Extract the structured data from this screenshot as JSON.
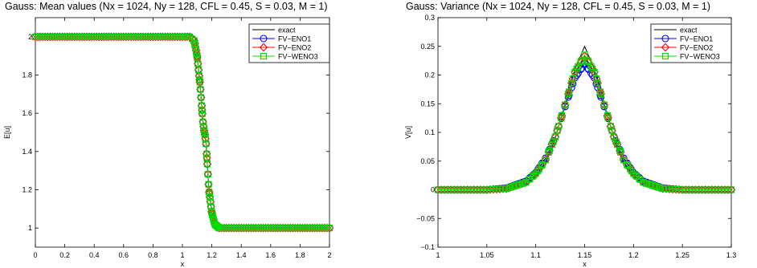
{
  "chart_data": [
    {
      "type": "line",
      "title": "Gauss: Mean values (Nx = 1024, Ny = 128, CFL = 0.45, S = 0.03, M = 1)",
      "xlabel": "x",
      "ylabel": "E[u]",
      "xlim": [
        0,
        2
      ],
      "ylim": [
        0.9,
        2.1
      ],
      "x_ticks": [
        0,
        0.2,
        0.4,
        0.6,
        0.8,
        1,
        1.2,
        1.4,
        1.6,
        1.8,
        2
      ],
      "x_tick_labels": [
        "0",
        "0.2",
        "0.4",
        "0.6",
        "0.8",
        "1",
        "1.2",
        "1.4",
        "1.6",
        "1.8",
        "2"
      ],
      "y_ticks": [
        1,
        1.2,
        1.4,
        1.6,
        1.8,
        2
      ],
      "y_tick_labels": [
        "1",
        "1.2",
        "1.4",
        "1.6",
        "1.8",
        "2"
      ],
      "grid": false,
      "legend_position": "top-right",
      "series": [
        {
          "name": "exact",
          "color": "#000000",
          "marker": "none",
          "x": [
            0,
            1.05,
            1.08,
            1.1,
            1.12,
            1.14,
            1.15,
            1.16,
            1.18,
            1.2,
            1.22,
            1.25,
            2
          ],
          "y": [
            2,
            2,
            1.98,
            1.9,
            1.75,
            1.55,
            1.5,
            1.45,
            1.2,
            1.08,
            1.02,
            1,
            1
          ]
        },
        {
          "name": "FV−ENO1",
          "color": "#0000ff",
          "marker": "circle",
          "x": [
            0,
            1.05,
            1.08,
            1.1,
            1.12,
            1.14,
            1.15,
            1.16,
            1.18,
            1.2,
            1.22,
            1.25,
            2
          ],
          "y": [
            2,
            2,
            1.98,
            1.9,
            1.75,
            1.55,
            1.5,
            1.45,
            1.2,
            1.08,
            1.02,
            1,
            1
          ]
        },
        {
          "name": "FV−ENO2",
          "color": "#ff0000",
          "marker": "diamond",
          "x": [
            0,
            1.05,
            1.08,
            1.1,
            1.12,
            1.14,
            1.15,
            1.16,
            1.18,
            1.2,
            1.22,
            1.25,
            2
          ],
          "y": [
            2,
            2,
            1.98,
            1.9,
            1.75,
            1.55,
            1.5,
            1.45,
            1.2,
            1.08,
            1.02,
            1,
            1
          ]
        },
        {
          "name": "FV−WENO3",
          "color": "#00dd00",
          "marker": "square",
          "x": [
            0,
            1.05,
            1.08,
            1.1,
            1.12,
            1.14,
            1.15,
            1.16,
            1.18,
            1.2,
            1.22,
            1.25,
            2
          ],
          "y": [
            2,
            2,
            1.98,
            1.9,
            1.75,
            1.55,
            1.5,
            1.45,
            1.2,
            1.08,
            1.02,
            1,
            1
          ]
        }
      ]
    },
    {
      "type": "line",
      "title": "Gauss: Variance (Nx = 1024, Ny = 128, CFL = 0.45, S = 0.03, M = 1)",
      "xlabel": "x",
      "ylabel": "V[u]",
      "xlim": [
        1,
        1.3
      ],
      "ylim": [
        -0.1,
        0.3
      ],
      "x_ticks": [
        1,
        1.05,
        1.1,
        1.15,
        1.2,
        1.25,
        1.3
      ],
      "x_tick_labels": [
        "1",
        "1.05",
        "1.1",
        "1.15",
        "1.2",
        "1.25",
        "1.3"
      ],
      "y_ticks": [
        -0.1,
        -0.05,
        0,
        0.05,
        0.1,
        0.15,
        0.2,
        0.25,
        0.3
      ],
      "y_tick_labels": [
        "−0.1",
        "−0.05",
        "0",
        "0.05",
        "0.1",
        "0.15",
        "0.2",
        "0.25",
        "0.3"
      ],
      "grid": false,
      "legend_position": "top-right",
      "series": [
        {
          "name": "exact",
          "color": "#000000",
          "marker": "none",
          "x": [
            1,
            1.05,
            1.07,
            1.09,
            1.1,
            1.11,
            1.12,
            1.13,
            1.14,
            1.15,
            1.16,
            1.17,
            1.18,
            1.19,
            1.2,
            1.21,
            1.23,
            1.25,
            1.3
          ],
          "y": [
            0,
            0,
            0.001,
            0.011,
            0.025,
            0.048,
            0.09,
            0.15,
            0.21,
            0.25,
            0.21,
            0.15,
            0.09,
            0.048,
            0.025,
            0.011,
            0.001,
            0,
            0
          ]
        },
        {
          "name": "FV−ENO1",
          "color": "#0000ff",
          "marker": "circle",
          "x": [
            1,
            1.05,
            1.07,
            1.09,
            1.1,
            1.11,
            1.12,
            1.13,
            1.14,
            1.15,
            1.16,
            1.17,
            1.18,
            1.19,
            1.2,
            1.21,
            1.23,
            1.25,
            1.3
          ],
          "y": [
            0,
            0,
            0.003,
            0.015,
            0.03,
            0.055,
            0.093,
            0.145,
            0.195,
            0.22,
            0.195,
            0.145,
            0.093,
            0.055,
            0.03,
            0.015,
            0.003,
            0,
            0
          ]
        },
        {
          "name": "FV−ENO2",
          "color": "#ff0000",
          "marker": "diamond",
          "x": [
            1,
            1.05,
            1.07,
            1.09,
            1.1,
            1.11,
            1.12,
            1.13,
            1.14,
            1.15,
            1.16,
            1.17,
            1.18,
            1.19,
            1.2,
            1.21,
            1.23,
            1.25,
            1.3
          ],
          "y": [
            0,
            0,
            0.002,
            0.013,
            0.028,
            0.052,
            0.092,
            0.148,
            0.205,
            0.233,
            0.205,
            0.148,
            0.092,
            0.052,
            0.028,
            0.013,
            0.002,
            0,
            0
          ]
        },
        {
          "name": "FV−WENO3",
          "color": "#00dd00",
          "marker": "square",
          "x": [
            1,
            1.05,
            1.07,
            1.09,
            1.1,
            1.11,
            1.12,
            1.13,
            1.14,
            1.15,
            1.16,
            1.17,
            1.18,
            1.19,
            1.2,
            1.21,
            1.23,
            1.25,
            1.3
          ],
          "y": [
            0,
            0,
            0.002,
            0.013,
            0.028,
            0.052,
            0.092,
            0.148,
            0.205,
            0.235,
            0.205,
            0.148,
            0.092,
            0.052,
            0.028,
            0.013,
            0.002,
            0,
            0
          ]
        }
      ]
    }
  ]
}
